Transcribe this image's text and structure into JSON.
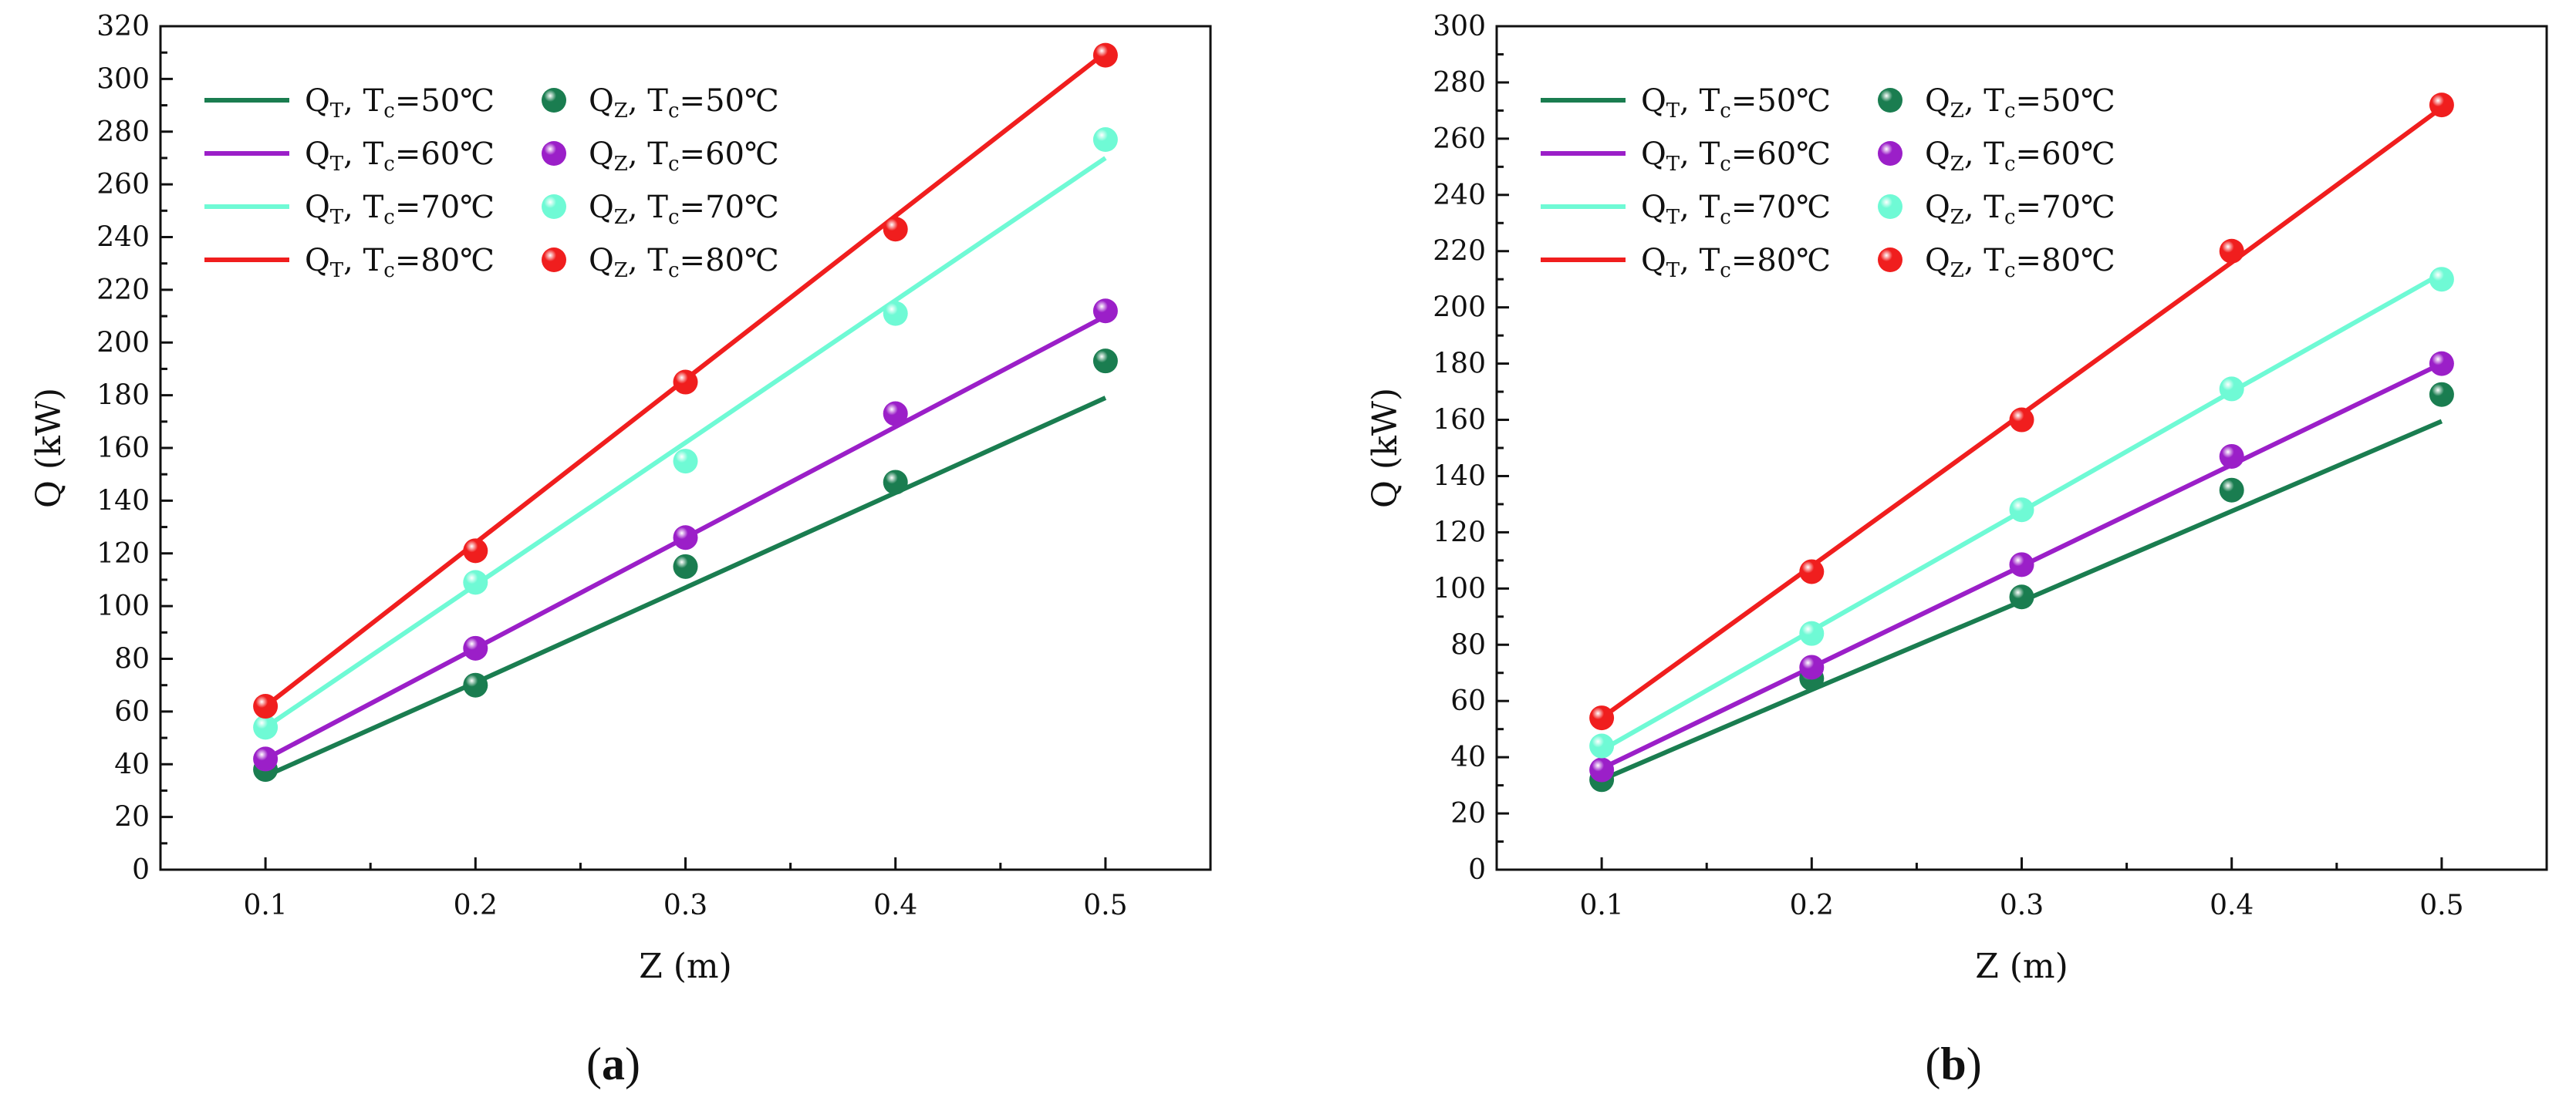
{
  "chart_data": [
    {
      "type": "line",
      "panel": "a",
      "xlabel": "Z (m)",
      "ylabel": "Q (kW)",
      "xlim": [
        0.05,
        0.55
      ],
      "ylim": [
        0,
        320
      ],
      "xticks": [
        0.1,
        0.2,
        0.3,
        0.4,
        0.5
      ],
      "xtick_labels": [
        "0.1",
        "0.2",
        "0.3",
        "0.4",
        "0.5"
      ],
      "yticks": [
        0,
        20,
        40,
        60,
        80,
        100,
        120,
        140,
        160,
        180,
        200,
        220,
        240,
        260,
        280,
        300,
        320
      ],
      "x": [
        0.1,
        0.2,
        0.3,
        0.4,
        0.5
      ],
      "series": [
        {
          "name": "Q_T, T_c=50℃",
          "kind": "line",
          "color": "#1a7d50",
          "values": [
            35.5,
            71.0,
            107.0,
            143.0,
            179.0
          ]
        },
        {
          "name": "Q_T, T_c=60℃",
          "kind": "line",
          "color": "#9b1fc8",
          "values": [
            42.0,
            84.0,
            126.0,
            168.0,
            210.0
          ]
        },
        {
          "name": "Q_T, T_c=70℃",
          "kind": "line",
          "color": "#6ffad5",
          "values": [
            54.0,
            108.0,
            162.0,
            216.0,
            270.0
          ]
        },
        {
          "name": "Q_T, T_c=80℃",
          "kind": "line",
          "color": "#f01e1e",
          "values": [
            62.0,
            124.0,
            186.0,
            248.0,
            310.0
          ]
        },
        {
          "name": "Q_Z, T_c=50℃",
          "kind": "scatter",
          "color": "#1a7d50",
          "values": [
            38.0,
            70.0,
            115.0,
            147.0,
            193.0
          ]
        },
        {
          "name": "Q_Z, T_c=60℃",
          "kind": "scatter",
          "color": "#9b1fc8",
          "values": [
            42.0,
            84.0,
            126.0,
            173.0,
            212.0
          ]
        },
        {
          "name": "Q_Z, T_c=70℃",
          "kind": "scatter",
          "color": "#6ffad5",
          "values": [
            54.0,
            109.0,
            155.0,
            211.0,
            277.0
          ]
        },
        {
          "name": "Q_Z, T_c=80℃",
          "kind": "scatter",
          "color": "#f01e1e",
          "values": [
            62.0,
            121.0,
            185.0,
            243.0,
            309.0
          ]
        }
      ]
    },
    {
      "type": "line",
      "panel": "b",
      "xlabel": "Z (m)",
      "ylabel": "Q (kW)",
      "xlim": [
        0.05,
        0.55
      ],
      "ylim": [
        0,
        300
      ],
      "xticks": [
        0.1,
        0.2,
        0.3,
        0.4,
        0.5
      ],
      "xtick_labels": [
        "0.1",
        "0.2",
        "0.3",
        "0.4",
        "0.5"
      ],
      "yticks": [
        0,
        20,
        40,
        60,
        80,
        100,
        120,
        140,
        160,
        180,
        200,
        220,
        240,
        260,
        280,
        300
      ],
      "x": [
        0.1,
        0.2,
        0.3,
        0.4,
        0.5
      ],
      "series": [
        {
          "name": "Q_T, T_c=50℃",
          "kind": "line",
          "color": "#1a7d50",
          "values": [
            32.0,
            64.0,
            95.5,
            127.5,
            159.5
          ]
        },
        {
          "name": "Q_T, T_c=60℃",
          "kind": "line",
          "color": "#9b1fc8",
          "values": [
            36.0,
            72.0,
            108.0,
            144.0,
            180.0
          ]
        },
        {
          "name": "Q_T, T_c=70℃",
          "kind": "line",
          "color": "#6ffad5",
          "values": [
            42.5,
            85.0,
            127.5,
            170.0,
            212.0
          ]
        },
        {
          "name": "Q_T, T_c=80℃",
          "kind": "line",
          "color": "#f01e1e",
          "values": [
            54.0,
            108.0,
            162.0,
            216.0,
            271.0
          ]
        },
        {
          "name": "Q_Z, T_c=50℃",
          "kind": "scatter",
          "color": "#1a7d50",
          "values": [
            32.0,
            68.0,
            97.0,
            135.0,
            169.0
          ]
        },
        {
          "name": "Q_Z, T_c=60℃",
          "kind": "scatter",
          "color": "#9b1fc8",
          "values": [
            35.5,
            72.0,
            108.5,
            147.0,
            180.0
          ]
        },
        {
          "name": "Q_Z, T_c=70℃",
          "kind": "scatter",
          "color": "#6ffad5",
          "values": [
            44.0,
            84.0,
            128.0,
            171.0,
            210.0
          ]
        },
        {
          "name": "Q_Z, T_c=80℃",
          "kind": "scatter",
          "color": "#f01e1e",
          "values": [
            54.0,
            106.0,
            160.0,
            220.0,
            272.0
          ]
        }
      ]
    }
  ],
  "legend": {
    "Q": "Q",
    "subT": "T",
    "subZ": "Z",
    "sep": ", T",
    "subc": "c",
    "temps": [
      "=50℃",
      "=60℃",
      "=70℃",
      "=80℃"
    ]
  },
  "panel_labels": {
    "a": {
      "open": "(",
      "letter": "a",
      "close": ")"
    },
    "b": {
      "open": "(",
      "letter": "b",
      "close": ")"
    }
  }
}
